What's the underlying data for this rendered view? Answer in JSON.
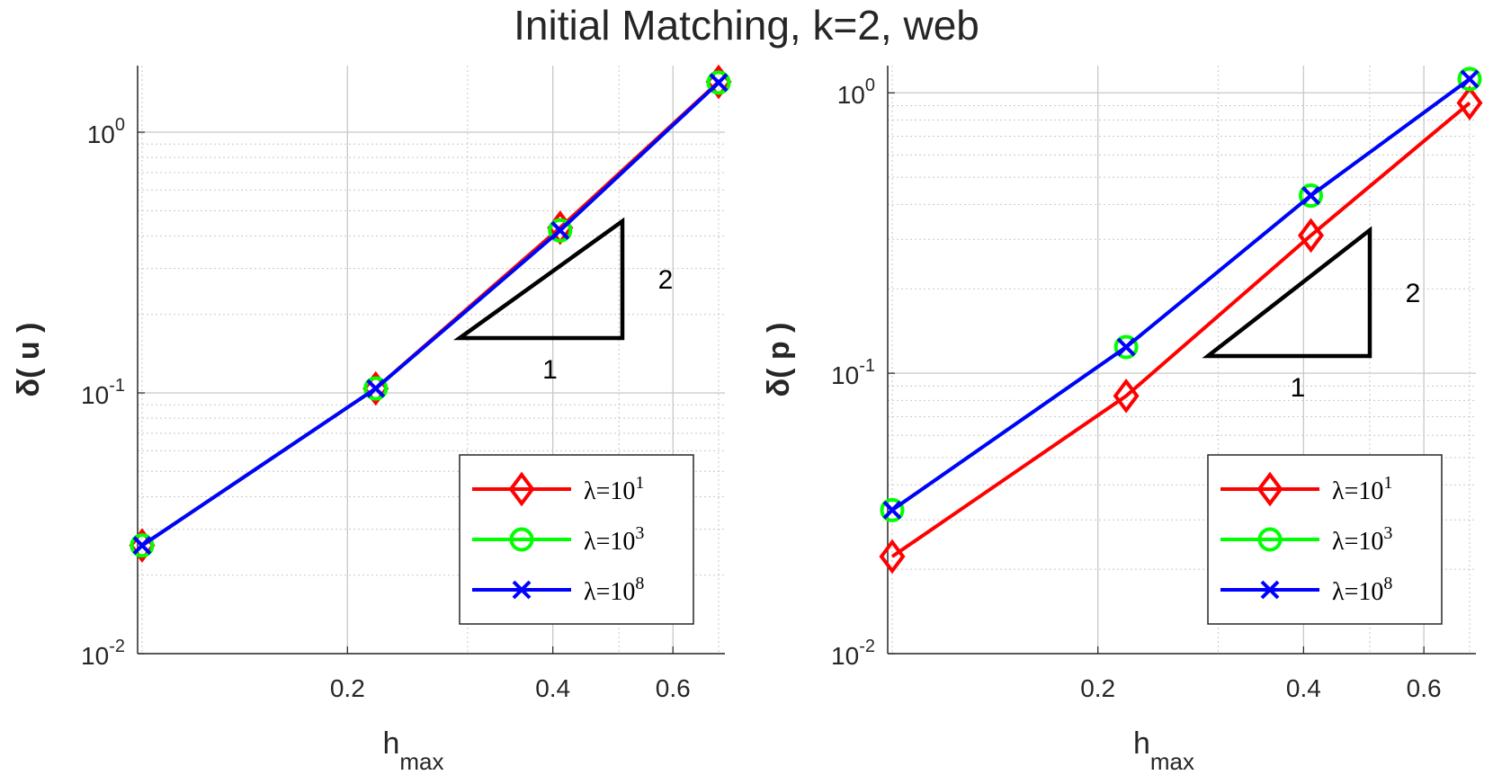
{
  "title": "Initial Matching, k=2, web",
  "colors": {
    "red": "#ff0000",
    "green": "#00ff00",
    "blue": "#0000ff",
    "axis": "#262626",
    "grid": "#c8c8c8"
  },
  "chart_data": [
    {
      "type": "line",
      "ylabel": "δ( u )",
      "xlabel": "h",
      "xlabel_subscript": "max",
      "xscale": "log",
      "yscale": "log",
      "xlim": [
        0.0985,
        0.715
      ],
      "ylim": [
        0.01,
        1.8
      ],
      "x_ticks": [
        0.2,
        0.4,
        0.6
      ],
      "x_tick_labels": [
        "0.2",
        "0.4",
        "0.6"
      ],
      "y_ticks": [
        0.01,
        0.1,
        1
      ],
      "y_tick_labels": [
        {
          "base": "10",
          "exp": "-2"
        },
        {
          "base": "10",
          "exp": "-1"
        },
        {
          "base": "10",
          "exp": "0"
        }
      ],
      "grid": true,
      "legend_position": "bottom-right",
      "x": [
        0.1,
        0.22,
        0.41,
        0.7
      ],
      "series": [
        {
          "name": "λ=10",
          "name_exp": "1",
          "color": "#ff0000",
          "marker": "diamond",
          "values": [
            0.026,
            0.104,
            0.43,
            1.56
          ]
        },
        {
          "name": "λ=10",
          "name_exp": "3",
          "color": "#00ff00",
          "marker": "circle",
          "values": [
            0.026,
            0.104,
            0.42,
            1.55
          ]
        },
        {
          "name": "λ=10",
          "name_exp": "8",
          "color": "#0000ff",
          "marker": "x",
          "values": [
            0.026,
            0.104,
            0.42,
            1.55
          ]
        }
      ],
      "slope_triangle": {
        "run_label": "1",
        "rise_label": "2"
      }
    },
    {
      "type": "line",
      "ylabel": "δ( p )",
      "xlabel": "h",
      "xlabel_subscript": "max",
      "xscale": "log",
      "yscale": "log",
      "xlim": [
        0.0985,
        0.715
      ],
      "ylim": [
        0.01,
        1.25
      ],
      "x_ticks": [
        0.2,
        0.4,
        0.6
      ],
      "x_tick_labels": [
        "0.2",
        "0.4",
        "0.6"
      ],
      "y_ticks": [
        0.01,
        0.1,
        1
      ],
      "y_tick_labels": [
        {
          "base": "10",
          "exp": "-2"
        },
        {
          "base": "10",
          "exp": "-1"
        },
        {
          "base": "10",
          "exp": "0"
        }
      ],
      "grid": true,
      "legend_position": "bottom-right",
      "x": [
        0.1,
        0.22,
        0.41,
        0.7
      ],
      "series": [
        {
          "name": "λ=10",
          "name_exp": "1",
          "color": "#ff0000",
          "marker": "diamond",
          "values": [
            0.0222,
            0.083,
            0.31,
            0.92
          ]
        },
        {
          "name": "λ=10",
          "name_exp": "3",
          "color": "#00ff00",
          "marker": "circle",
          "values": [
            0.0325,
            0.124,
            0.43,
            1.12
          ]
        },
        {
          "name": "λ=10",
          "name_exp": "8",
          "color": "#0000ff",
          "marker": "x",
          "values": [
            0.0325,
            0.124,
            0.43,
            1.12
          ]
        }
      ],
      "slope_triangle": {
        "run_label": "1",
        "rise_label": "2"
      }
    }
  ]
}
